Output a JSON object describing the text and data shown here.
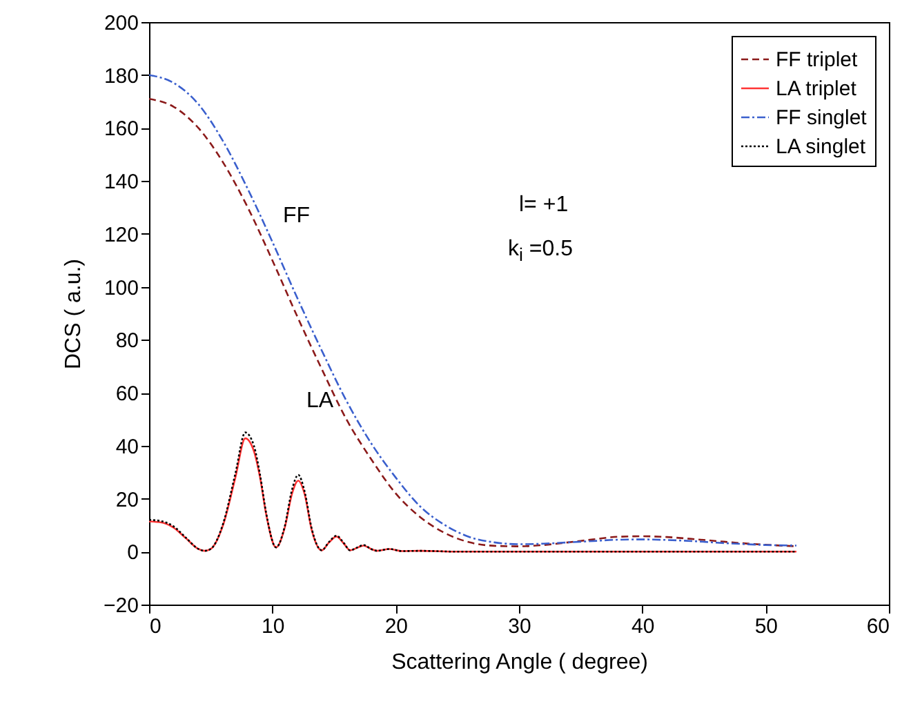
{
  "chart_data": {
    "type": "line",
    "xlabel": "Scattering Angle ( degree)",
    "ylabel": "DCS ( a.u.)",
    "xlim": [
      0,
      60
    ],
    "xticks": [
      0,
      10,
      20,
      30,
      40,
      50,
      60
    ],
    "ylim": [
      -20,
      200
    ],
    "yticks": [
      -20,
      0,
      20,
      40,
      60,
      80,
      100,
      120,
      140,
      160,
      180,
      200
    ],
    "legend": "top right",
    "grid": false,
    "annotations": [
      "FF",
      "LA",
      "l= +1",
      "k$_{i}$ =0.5"
    ],
    "series": [
      {
        "name": "FF triplet",
        "color": "#8b1a1a",
        "line_style": "dashed",
        "x": [
          0,
          2,
          4,
          6,
          8,
          10,
          12,
          14,
          16,
          18,
          20,
          22,
          24,
          26,
          28,
          30,
          32,
          34,
          36,
          38,
          40,
          42,
          44,
          46,
          48,
          50,
          52.5
        ],
        "values": [
          171,
          168,
          160,
          147,
          130,
          110,
          89,
          69,
          50,
          35,
          22,
          13,
          7,
          3.5,
          2.2,
          2,
          2.5,
          3.5,
          4.6,
          5.6,
          5.8,
          5.5,
          4.8,
          4,
          3.2,
          2.6,
          2
        ]
      },
      {
        "name": "LA triplet",
        "color": "#ff3333",
        "line_style": "solid",
        "x": [
          0,
          1,
          2,
          3,
          4,
          4.5,
          5,
          6,
          7,
          7.8,
          8.5,
          9,
          9.5,
          10.3,
          11,
          11.6,
          12.1,
          12.6,
          13.2,
          14,
          14.6,
          15.2,
          15.8,
          16.3,
          16.9,
          17.4,
          18,
          18.5,
          19.5,
          20.5,
          22,
          25,
          30,
          40,
          52.5
        ],
        "values": [
          11.4,
          11,
          9,
          5,
          1,
          0.3,
          1,
          10,
          28,
          42.8,
          38,
          28,
          14,
          1.6,
          9,
          22,
          26.8,
          22,
          8,
          0.5,
          3.5,
          5.7,
          3,
          0.5,
          1.5,
          2.3,
          1,
          0.3,
          1,
          0.2,
          0.3,
          0,
          0,
          0,
          0
        ]
      },
      {
        "name": "FF singlet",
        "color": "#3a5fcd",
        "line_style": "dashdot",
        "x": [
          0,
          2,
          4,
          6,
          8,
          10,
          12,
          14,
          16,
          18,
          20,
          22,
          24,
          26,
          28,
          30,
          32,
          34,
          36,
          38,
          40,
          42,
          44,
          46,
          48,
          50,
          52.5
        ],
        "values": [
          180,
          177,
          169,
          155,
          137,
          117,
          96,
          76,
          57,
          41,
          28,
          17,
          10,
          5.5,
          3.5,
          2.8,
          3,
          3.5,
          4,
          4.5,
          4.6,
          4.4,
          4,
          3.4,
          2.9,
          2.5,
          2.3
        ]
      },
      {
        "name": "LA singlet",
        "color": "#000000",
        "line_style": "dotted",
        "x": [
          0,
          1,
          2,
          3,
          4,
          4.5,
          5,
          6,
          7,
          7.8,
          8.5,
          9,
          9.5,
          10.3,
          11,
          11.6,
          12.1,
          12.6,
          13.2,
          14,
          14.6,
          15.2,
          15.8,
          16.3,
          16.9,
          17.4,
          18,
          18.5,
          19.5,
          20.5,
          22,
          25,
          30,
          40,
          52.5
        ],
        "values": [
          12,
          11.5,
          9.5,
          5.2,
          1,
          0.3,
          1,
          10.5,
          29.5,
          45,
          40,
          29,
          14.5,
          1.6,
          9.5,
          23.5,
          29,
          23,
          8.5,
          0.5,
          3.7,
          6,
          3.2,
          0.5,
          1.6,
          2.5,
          1,
          0.3,
          1,
          0.2,
          0.3,
          0,
          0,
          0,
          0
        ]
      }
    ]
  }
}
